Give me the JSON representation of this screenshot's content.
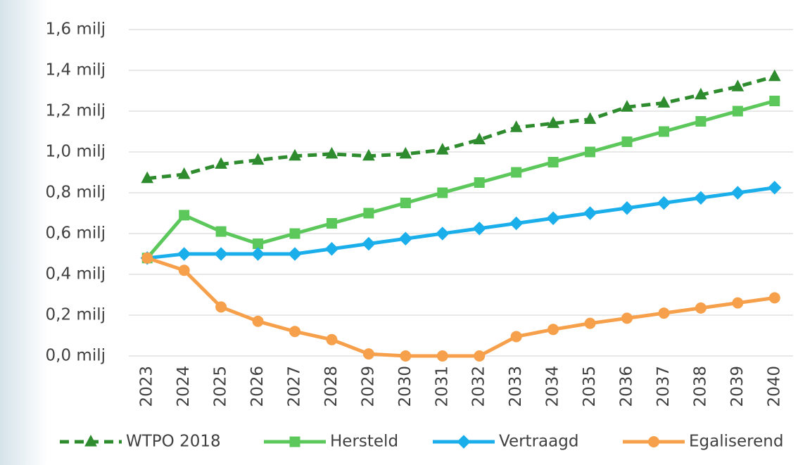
{
  "chart_data": {
    "type": "line",
    "categories": [
      "2023",
      "2024",
      "2025",
      "2026",
      "2027",
      "2028",
      "2029",
      "2030",
      "2031",
      "2032",
      "2033",
      "2034",
      "2035",
      "2036",
      "2037",
      "2038",
      "2039",
      "2040"
    ],
    "ylim": [
      0,
      1.6
    ],
    "yticks": [
      {
        "value": 0,
        "label": "0,0 milj"
      },
      {
        "value": 0.2,
        "label": "0,2 milj"
      },
      {
        "value": 0.4,
        "label": "0,4 milj"
      },
      {
        "value": 0.6,
        "label": "0,6 milj"
      },
      {
        "value": 0.8,
        "label": "0,8 milj"
      },
      {
        "value": 1.0,
        "label": "1,0 milj"
      },
      {
        "value": 1.2,
        "label": "1,2 milj"
      },
      {
        "value": 1.4,
        "label": "1,4 milj"
      },
      {
        "value": 1.6,
        "label": "1,6 milj"
      }
    ],
    "grid": true,
    "legend": "bottom",
    "series": [
      {
        "name": "WTPO 2018",
        "color": "#2e8b2e",
        "dash": true,
        "marker": "triangle",
        "values": [
          0.87,
          0.89,
          0.94,
          0.96,
          0.98,
          0.99,
          0.98,
          0.99,
          1.01,
          1.06,
          1.12,
          1.14,
          1.16,
          1.22,
          1.24,
          1.28,
          1.32,
          1.37
        ]
      },
      {
        "name": "Hersteld",
        "color": "#5cc85c",
        "dash": false,
        "marker": "square",
        "values": [
          0.48,
          0.69,
          0.61,
          0.55,
          0.6,
          0.65,
          0.7,
          0.75,
          0.8,
          0.85,
          0.9,
          0.95,
          1.0,
          1.05,
          1.1,
          1.15,
          1.2,
          1.25
        ]
      },
      {
        "name": "Vertraagd",
        "color": "#1aaeea",
        "dash": false,
        "marker": "diamond",
        "values": [
          0.48,
          0.5,
          0.5,
          0.5,
          0.5,
          0.525,
          0.55,
          0.575,
          0.6,
          0.625,
          0.65,
          0.675,
          0.7,
          0.725,
          0.75,
          0.775,
          0.8,
          0.825
        ]
      },
      {
        "name": "Egaliserend",
        "color": "#f7a04b",
        "dash": false,
        "marker": "circle",
        "values": [
          0.48,
          0.42,
          0.24,
          0.17,
          0.12,
          0.08,
          0.01,
          0,
          0,
          0,
          0.095,
          0.13,
          0.16,
          0.185,
          0.21,
          0.235,
          0.26,
          0.285
        ]
      }
    ]
  }
}
